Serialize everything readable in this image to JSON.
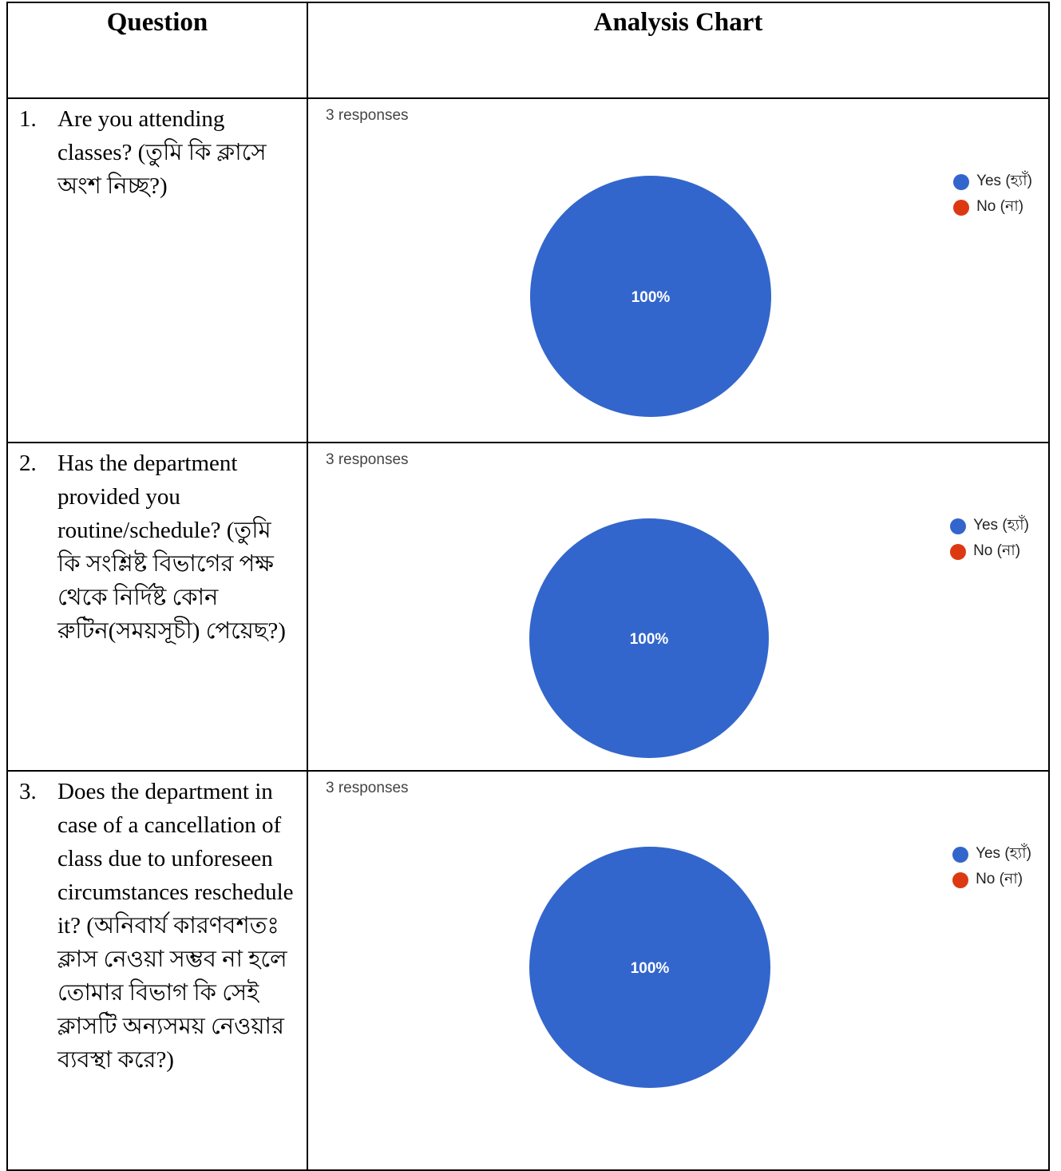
{
  "header": {
    "question_label": "Question",
    "chart_label": "Analysis Chart"
  },
  "colors": {
    "yes": "#3366cc",
    "no": "#dc3912",
    "border": "#000000"
  },
  "rows": [
    {
      "number": "1.",
      "question": "Are you attending classes? (তুমি কি ক্লাসে অংশ নিচ্ছ?)",
      "responses": "3 responses",
      "legend": [
        "Yes (হ্যাঁ)",
        "No (না)"
      ],
      "slice_label": "100%"
    },
    {
      "number": "2.",
      "question": "Has the department provided you routine/schedule? (তুমি কি সংশ্লিষ্ট বিভাগের পক্ষ থেকে নির্দিষ্ট কোন রুটিন(সময়সূচী) পেয়েছ?)",
      "responses": "3 responses",
      "legend": [
        "Yes (হ্যাঁ)",
        "No (না)"
      ],
      "slice_label": "100%"
    },
    {
      "number": "3.",
      "question": "Does the department in case of a cancellation of class due to unforeseen circumstances reschedule it? (অনিবার্য কারণবশতঃ ক্লাস নেওয়া সম্ভব না হলে তোমার বিভাগ কি সেই ক্লাসটি অন্যসময় নেওয়ার ব্যবস্থা করে?)",
      "responses": "3 responses",
      "legend": [
        "Yes (হ্যাঁ)",
        "No (না)"
      ],
      "slice_label": "100%"
    }
  ],
  "chart_data": [
    {
      "type": "pie",
      "categories": [
        "Yes (হ্যাঁ)",
        "No (না)"
      ],
      "values": [
        100,
        0
      ],
      "subtitle": "3 responses",
      "legend": "right"
    },
    {
      "type": "pie",
      "categories": [
        "Yes (হ্যাঁ)",
        "No (না)"
      ],
      "values": [
        100,
        0
      ],
      "subtitle": "3 responses",
      "legend": "right"
    },
    {
      "type": "pie",
      "categories": [
        "Yes (হ্যাঁ)",
        "No (না)"
      ],
      "values": [
        100,
        0
      ],
      "subtitle": "3 responses",
      "legend": "right"
    }
  ]
}
